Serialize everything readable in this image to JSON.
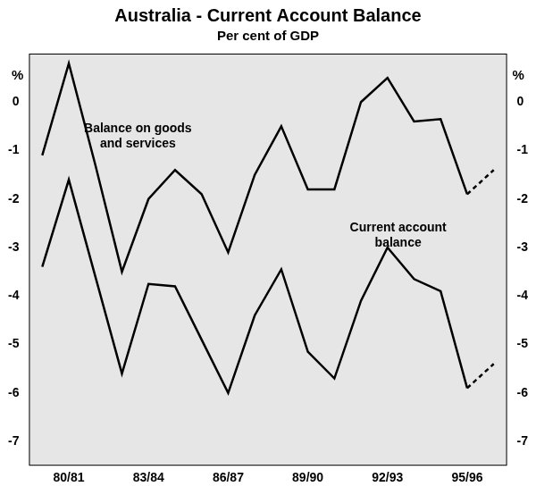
{
  "chart_data": {
    "type": "line",
    "title": "Australia - Current Account Balance",
    "subtitle": "Per cent of GDP",
    "ylabel": "%",
    "categories": [
      null,
      "80/81",
      null,
      null,
      "83/84",
      null,
      null,
      "86/87",
      null,
      null,
      "89/90",
      null,
      null,
      "92/93",
      null,
      null,
      "95/96",
      null
    ],
    "series": [
      {
        "name": "Balance on goods and services",
        "color": "#000000",
        "line_style": "solid",
        "values": [
          -1.1,
          0.8,
          -1.3,
          -3.5,
          -2.0,
          -1.4,
          -1.9,
          -3.1,
          -1.5,
          -0.5,
          -1.8,
          -1.8,
          0.0,
          0.5,
          -0.4,
          -0.35,
          -1.9,
          null
        ]
      },
      {
        "name": "Balance on goods and services",
        "color": "#000000",
        "line_style": "dashed",
        "values": [
          null,
          null,
          null,
          null,
          null,
          null,
          null,
          null,
          null,
          null,
          null,
          null,
          null,
          null,
          null,
          null,
          -1.9,
          -1.4
        ]
      },
      {
        "name": "Current account balance",
        "color": "#000000",
        "line_style": "solid",
        "values": [
          -3.4,
          -1.6,
          -3.6,
          -5.6,
          -3.75,
          -3.8,
          -4.9,
          -6.0,
          -4.4,
          -3.45,
          -5.15,
          -5.7,
          -4.1,
          -3.0,
          -3.65,
          -3.9,
          -5.9,
          null
        ]
      },
      {
        "name": "Current account balance",
        "color": "#000000",
        "line_style": "dashed",
        "values": [
          null,
          null,
          null,
          null,
          null,
          null,
          null,
          null,
          null,
          null,
          null,
          null,
          null,
          null,
          null,
          null,
          -5.9,
          -5.4
        ]
      }
    ],
    "ylim": [
      -7.5,
      1
    ],
    "yticks": [
      -7,
      -6,
      -5,
      -4,
      -3,
      -2,
      -1,
      0
    ],
    "y2lim": [
      -7.5,
      1
    ],
    "y2ticks": [
      -7,
      -6,
      -5,
      -4,
      -3,
      -2,
      -1,
      0
    ],
    "grid": false
  }
}
